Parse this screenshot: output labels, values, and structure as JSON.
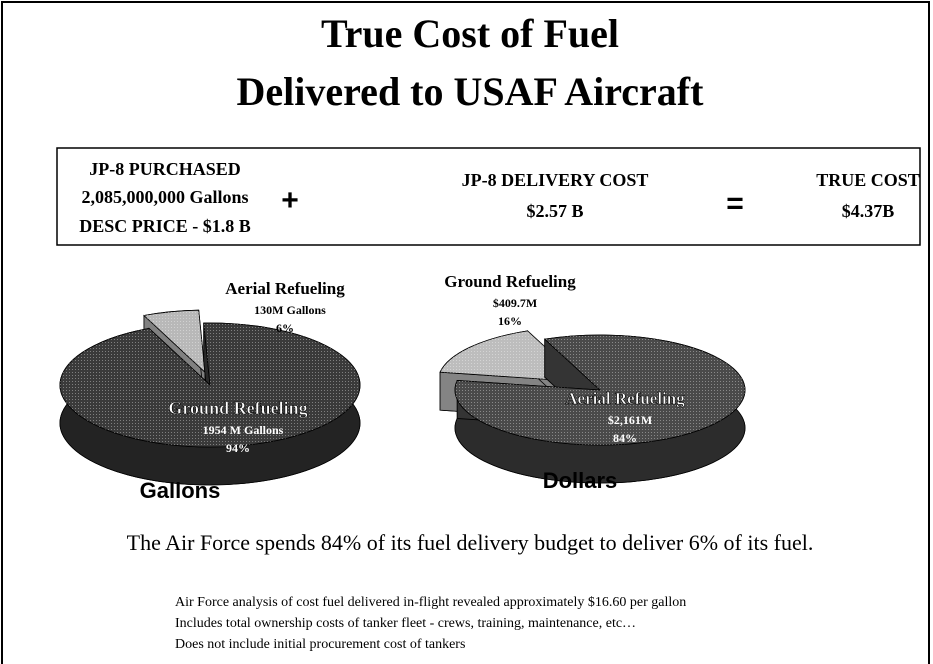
{
  "title_lines": [
    "True Cost of Fuel",
    "Delivered to USAF Aircraft"
  ],
  "equation": {
    "purchased": [
      "JP-8 PURCHASED",
      "2,085,000,000 Gallons",
      "DESC PRICE - $1.8 B"
    ],
    "plus": "+",
    "delivery": [
      "JP-8 DELIVERY COST",
      "$2.57 B"
    ],
    "equals": "=",
    "true_cost": [
      "TRUE COST",
      "$4.37B"
    ]
  },
  "chart_data": [
    {
      "type": "pie",
      "caption": "Gallons",
      "categories": [
        "Aerial Refueling",
        "Ground Refueling"
      ],
      "values": [
        6,
        94
      ],
      "value_labels": [
        "6%",
        "94%"
      ],
      "amount_labels": [
        "130M Gallons",
        "1954 M Gallons"
      ],
      "colors": [
        "#b8b8b8",
        "#3a3a3a"
      ]
    },
    {
      "type": "pie",
      "caption": "Dollars",
      "categories": [
        "Ground Refueling",
        "Aerial Refueling"
      ],
      "values": [
        16,
        84
      ],
      "value_labels": [
        "16%",
        "84%"
      ],
      "amount_labels": [
        "$409.7M",
        "$2,161M"
      ],
      "colors": [
        "#bdbdbd",
        "#4a4a4a"
      ]
    }
  ],
  "statement": "The Air Force spends 84% of its fuel delivery budget to deliver 6% of its fuel.",
  "notes": [
    "Air Force analysis of cost fuel delivered in-flight revealed approximately $16.60 per gallon",
    "Includes total ownership costs of tanker fleet - crews, training, maintenance, etc…",
    "Does not include initial procurement cost of tankers"
  ]
}
